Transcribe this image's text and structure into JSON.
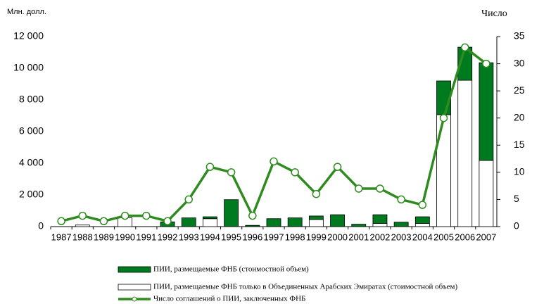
{
  "chart_data": {
    "type": "bar_line",
    "y_label": "Млн. долл.",
    "y2_label": "Число",
    "categories": [
      "1987",
      "1988",
      "1989",
      "1990",
      "1991",
      "1992",
      "1993",
      "1994",
      "1995",
      "1996",
      "1997",
      "1998",
      "1999",
      "2000",
      "2001",
      "2002",
      "2003",
      "2004",
      "2005",
      "2006",
      "2007"
    ],
    "series": [
      {
        "name": "ПИИ, размещаемые ФНБ только в Объединенных Арабских Эмиратах (стоимостной объем)",
        "color": "#ffffff",
        "type": "bar",
        "values": [
          0,
          100,
          0,
          550,
          0,
          0,
          0,
          500,
          0,
          0,
          0,
          0,
          450,
          0,
          0,
          200,
          0,
          200,
          7070,
          9240,
          4180
        ]
      },
      {
        "name": "ПИИ, размещаемые ФНБ (стоимостной объем)",
        "color": "#007a1e",
        "type": "bar",
        "values": [
          0,
          0,
          0,
          0,
          0,
          300,
          550,
          120,
          1700,
          80,
          500,
          550,
          220,
          750,
          150,
          550,
          280,
          420,
          2130,
          2090,
          6170
        ]
      },
      {
        "name": "Число соглашений  о ПИИ, заключенных ФНБ",
        "color": "#2e8b1e",
        "type": "line",
        "axis": "y2",
        "values": [
          1,
          2,
          1,
          2,
          2,
          1,
          5,
          11,
          10,
          2,
          12,
          10,
          6,
          11,
          7,
          7,
          5,
          4,
          20,
          33,
          30
        ]
      }
    ],
    "ylim": [
      0,
      12000
    ],
    "yticks": [
      0,
      {
        "value": 2000,
        "label": "2 000"
      },
      {
        "value": 4000,
        "label": "4 000"
      },
      {
        "value": 6000,
        "label": "6 000"
      },
      {
        "value": 8000,
        "label": "8 000"
      },
      {
        "value": 10000,
        "label": "10 000"
      },
      {
        "value": 12000,
        "label": "12 000"
      }
    ],
    "y2lim": [
      0,
      35
    ],
    "y2ticks": [
      0,
      5,
      10,
      15,
      20,
      25,
      30,
      35
    ]
  }
}
